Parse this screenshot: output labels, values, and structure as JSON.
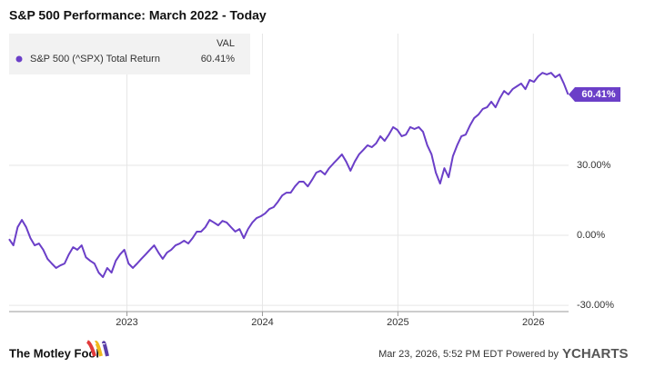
{
  "chart_data": {
    "type": "line",
    "title": "S&P 500 Performance: March 2022 - Today",
    "legend_header": "VAL",
    "x": [
      2022.13,
      2022.1615,
      2022.193,
      2022.2245,
      2022.256,
      2022.2875,
      2022.319,
      2022.3505,
      2022.382,
      2022.4135,
      2022.445,
      2022.4765,
      2022.508,
      2022.5395,
      2022.571,
      2022.6025,
      2022.634,
      2022.6655,
      2022.697,
      2022.7285,
      2022.76,
      2022.7915,
      2022.823,
      2022.8545,
      2022.886,
      2022.9175,
      2022.949,
      2022.9805,
      2023.012,
      2023.0435,
      2023.075,
      2023.1065,
      2023.138,
      2023.1695,
      2023.201,
      2023.2325,
      2023.264,
      2023.2955,
      2023.327,
      2023.3585,
      2023.39,
      2023.4215,
      2023.453,
      2023.4845,
      2023.516,
      2023.5475,
      2023.579,
      2023.6105,
      2023.642,
      2023.6735,
      2023.705,
      2023.7365,
      2023.768,
      2023.7995,
      2023.831,
      2023.8625,
      2023.894,
      2023.9255,
      2023.957,
      2023.9885,
      2024.02,
      2024.0515,
      2024.083,
      2024.1145,
      2024.146,
      2024.1775,
      2024.209,
      2024.2405,
      2024.272,
      2024.3035,
      2024.335,
      2024.3665,
      2024.398,
      2024.4295,
      2024.461,
      2024.4925,
      2024.524,
      2024.5555,
      2024.587,
      2024.6185,
      2024.65,
      2024.6815,
      2024.713,
      2024.7445,
      2024.776,
      2024.8075,
      2024.839,
      2024.8705,
      2024.902,
      2024.9335,
      2024.965,
      2024.9965,
      2025.028,
      2025.0595,
      2025.091,
      2025.1225,
      2025.154,
      2025.1855,
      2025.217,
      2025.2485,
      2025.28,
      2025.3115,
      2025.343,
      2025.3745,
      2025.406,
      2025.4375,
      2025.469,
      2025.5005,
      2025.532,
      2025.5635,
      2025.595,
      2025.6265,
      2025.658,
      2025.6895,
      2025.721,
      2025.7525,
      2025.784,
      2025.8155,
      2025.847,
      2025.8785,
      2025.91,
      2025.9415,
      2025.973,
      2026.0045,
      2026.036,
      2026.0675,
      2026.099,
      2026.1305,
      2026.162,
      2026.1935,
      2026.225,
      2026.2565
    ],
    "series": [
      {
        "name": "S&P 500 (^SPX) Total Return",
        "color": "#6b3fc8",
        "last_label": "60.41%",
        "values": [
          -1.6,
          -4.3,
          3.5,
          6.6,
          3.5,
          -1.2,
          -4.3,
          -3.5,
          -6.2,
          -10.1,
          -12.1,
          -14.0,
          -12.9,
          -12.1,
          -8.2,
          -5.1,
          -6.2,
          -4.3,
          -9.4,
          -10.9,
          -12.1,
          -16.0,
          -17.9,
          -14.0,
          -16.0,
          -10.9,
          -8.2,
          -6.2,
          -12.1,
          -14.0,
          -12.1,
          -10.1,
          -8.2,
          -6.2,
          -4.3,
          -7.4,
          -10.1,
          -7.4,
          -6.2,
          -4.3,
          -3.5,
          -2.3,
          -3.5,
          -1.2,
          1.6,
          1.6,
          3.5,
          6.6,
          5.5,
          4.3,
          6.2,
          5.5,
          3.5,
          1.6,
          2.7,
          -1.2,
          2.7,
          5.5,
          7.4,
          8.2,
          9.4,
          11.3,
          12.1,
          14.4,
          17.1,
          18.3,
          18.3,
          21.0,
          23.0,
          23.0,
          21.0,
          23.8,
          26.9,
          27.7,
          26.1,
          28.8,
          30.8,
          32.7,
          34.7,
          31.6,
          27.7,
          31.6,
          34.7,
          36.6,
          38.6,
          37.8,
          39.4,
          42.5,
          40.5,
          43.2,
          46.4,
          45.2,
          42.5,
          43.2,
          46.4,
          45.6,
          46.4,
          44.4,
          38.6,
          34.7,
          26.9,
          22.2,
          28.8,
          24.9,
          33.9,
          38.6,
          42.5,
          43.2,
          47.1,
          50.3,
          51.8,
          54.2,
          54.9,
          57.3,
          54.9,
          58.8,
          61.9,
          60.4,
          62.7,
          63.9,
          65.1,
          62.7,
          66.6,
          65.8,
          68.2,
          69.7,
          69.0,
          69.7,
          67.8,
          69.0,
          65.1,
          60.41
        ]
      }
    ],
    "xlim": [
      2022.13,
      2026.26
    ],
    "xticks": [
      2023,
      2024,
      2025,
      2026
    ],
    "ylim": [
      -32.7,
      86.5
    ],
    "yticks": [
      {
        "value": -30,
        "label": "-30.00%"
      },
      {
        "value": 0,
        "label": "0.00%"
      },
      {
        "value": 30,
        "label": "30.00%"
      }
    ],
    "grid": true
  },
  "footer": {
    "brand": "The Motley Fool",
    "timestamp": "Mar 23, 2026, 5:52 PM EDT Powered by",
    "provider": "YCHARTS"
  }
}
